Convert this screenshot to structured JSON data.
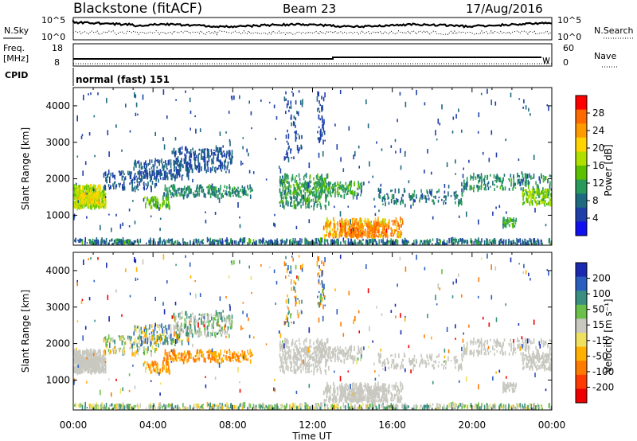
{
  "header": {
    "station": "Blackstone (fitACF)",
    "beam": "Beam 23",
    "date": "17/Aug/2016"
  },
  "noise_panel": {
    "left_label": "N.Sky",
    "right_label": "N.Search",
    "left_ticks": [
      "10^5",
      "10^0"
    ],
    "right_ticks": [
      "10^5",
      "10^0"
    ]
  },
  "freq_panel": {
    "left_label_line1": "Freq.",
    "left_label_line2": "[MHz]",
    "right_label": "Nave",
    "left_ticks": [
      "18",
      "8"
    ],
    "right_ticks": [
      "60",
      "0"
    ]
  },
  "cpid_panel": {
    "label": "CPID",
    "text": "normal (fast) 151"
  },
  "chart_data": [
    {
      "type": "heatmap",
      "name": "power",
      "ylabel": "Slant Range [km]",
      "y_ticks": [
        "4000",
        "3000",
        "2000",
        "1000"
      ],
      "y_tick_values": [
        4000,
        3000,
        2000,
        1000
      ],
      "ylim": [
        180,
        4500
      ],
      "xlim_hours": [
        0,
        24
      ],
      "colorbar": {
        "label": "Power [dB]",
        "ticks": [
          "28",
          "24",
          "20",
          "16",
          "12",
          "8",
          "4"
        ],
        "colors": [
          "#ff0000",
          "#ff6a00",
          "#ff9a00",
          "#ffd400",
          "#b0e000",
          "#5cc000",
          "#2a9a5c",
          "#1e6a80",
          "#1e3faa",
          "#1010f0"
        ]
      }
    },
    {
      "type": "heatmap",
      "name": "velocity",
      "ylabel": "Slant Range [km]",
      "y_ticks": [
        "4000",
        "3000",
        "2000",
        "1000"
      ],
      "y_tick_values": [
        4000,
        3000,
        2000,
        1000
      ],
      "ylim": [
        180,
        4500
      ],
      "xlim_hours": [
        0,
        24
      ],
      "colorbar": {
        "label": "Velocity [m s⁻¹]",
        "ticks": [
          "200",
          "100",
          "50",
          "15",
          "-15",
          "-50",
          "-100",
          "-200"
        ],
        "colors": [
          "#1a2ab0",
          "#2a5fc0",
          "#3a8f80",
          "#6ac04a",
          "#c8c8c0",
          "#f0e060",
          "#ffb000",
          "#ff7a00",
          "#ff3a00",
          "#ee0000"
        ]
      }
    }
  ],
  "time_axis": {
    "ticks": [
      "00:00",
      "04:00",
      "08:00",
      "12:00",
      "16:00",
      "20:00",
      "00:00"
    ],
    "label": "Time UT"
  }
}
